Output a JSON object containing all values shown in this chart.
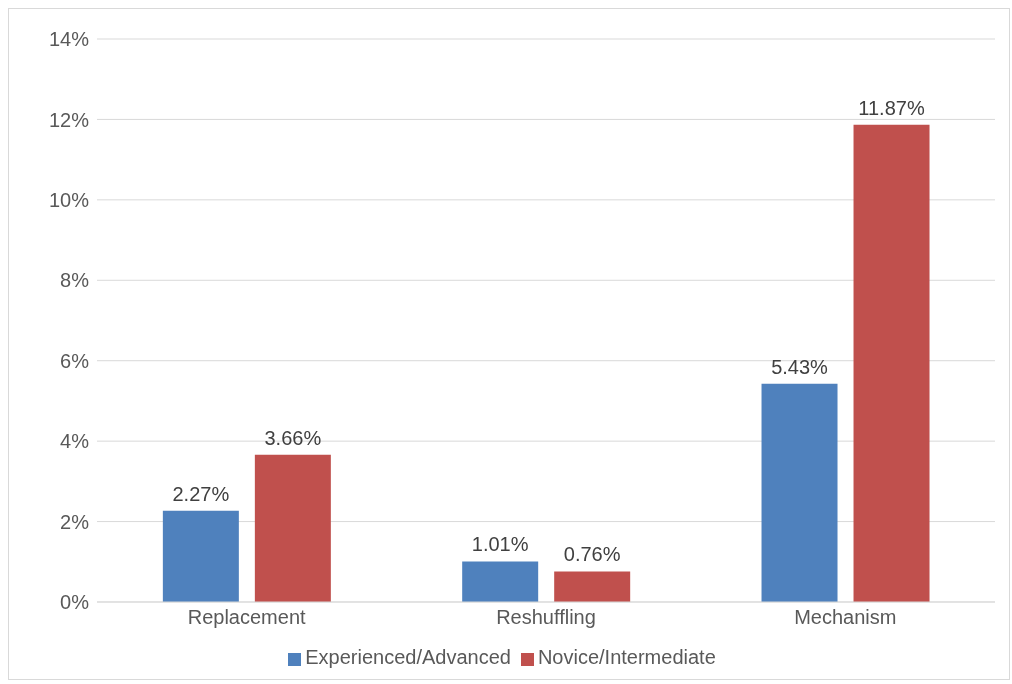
{
  "chart_data": {
    "type": "bar",
    "categories": [
      "Replacement",
      "Reshuffling",
      "Mechanism"
    ],
    "series": [
      {
        "name": "Experienced/Advanced",
        "color": "#4f81bd",
        "values": [
          2.27,
          1.01,
          5.43
        ],
        "value_labels": [
          "2.27%",
          "1.01%",
          "5.43%"
        ]
      },
      {
        "name": "Novice/Intermediate",
        "color": "#c0504d",
        "values": [
          3.66,
          0.76,
          11.87
        ],
        "value_labels": [
          "3.66%",
          "0.76%",
          "11.87%"
        ]
      }
    ],
    "ylim": [
      0,
      14
    ],
    "yticks": [
      {
        "value": 0,
        "label": "0%"
      },
      {
        "value": 2,
        "label": "2%"
      },
      {
        "value": 4,
        "label": "4%"
      },
      {
        "value": 6,
        "label": "6%"
      },
      {
        "value": 8,
        "label": "8%"
      },
      {
        "value": 10,
        "label": "10%"
      },
      {
        "value": 12,
        "label": "12%"
      },
      {
        "value": 14,
        "label": "14%"
      }
    ],
    "grid": "y",
    "legend": "bottom"
  }
}
